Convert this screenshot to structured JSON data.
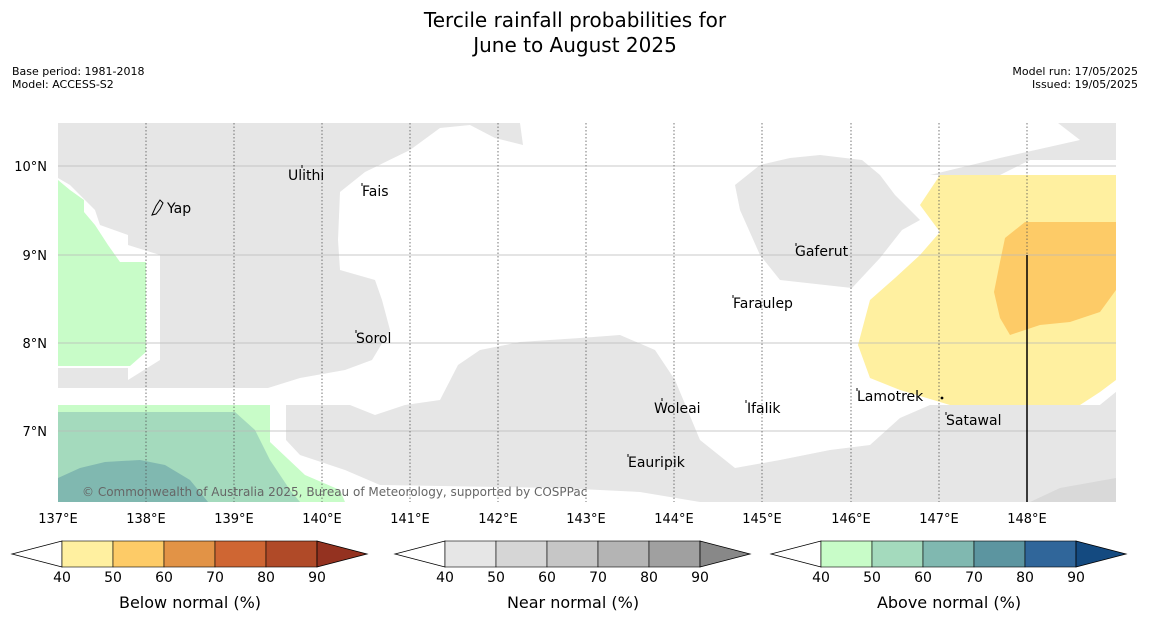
{
  "title_line1": "Tercile rainfall probabilities for",
  "title_line2": "June to August 2025",
  "meta": {
    "base_period": "Base period: 1981-2018",
    "model": "Model: ACCESS-S2",
    "model_run": "Model run: 17/05/2025",
    "issued": "Issued: 19/05/2025"
  },
  "copyright": "© Commonwealth of Australia 2025, Bureau of Meteorology, supported by COSPPac",
  "lon_labels": [
    "137°E",
    "138°E",
    "139°E",
    "140°E",
    "141°E",
    "142°E",
    "143°E",
    "144°E",
    "145°E",
    "146°E",
    "147°E",
    "148°E"
  ],
  "lat_labels": [
    "10°N",
    "9°N",
    "8°N",
    "7°N"
  ],
  "places": [
    "Yap",
    "Ulithi",
    "Fais",
    "Gaferut",
    "Faraulep",
    "Sorol",
    "Lamotrek",
    "Woleai",
    "Ifalik",
    "Satawal",
    "Eauripik"
  ],
  "colorbars": [
    {
      "label": "Below normal (%)",
      "ticks": [
        "40",
        "50",
        "60",
        "70",
        "80",
        "90"
      ],
      "colors": [
        "#fff0a0",
        "#fdcb67",
        "#e29346",
        "#cf6633",
        "#b04a28",
        "#943220"
      ]
    },
    {
      "label": "Near normal (%)",
      "ticks": [
        "40",
        "50",
        "60",
        "70",
        "80",
        "90"
      ],
      "colors": [
        "#e6e6e6",
        "#d6d6d6",
        "#c6c6c6",
        "#b4b4b4",
        "#a0a0a0",
        "#888888"
      ]
    },
    {
      "label": "Above normal (%)",
      "ticks": [
        "40",
        "50",
        "60",
        "70",
        "80",
        "90"
      ],
      "colors": [
        "#c8fcc8",
        "#a4dabd",
        "#80b8b0",
        "#5c95a0",
        "#30669a",
        "#144a80"
      ]
    }
  ]
}
